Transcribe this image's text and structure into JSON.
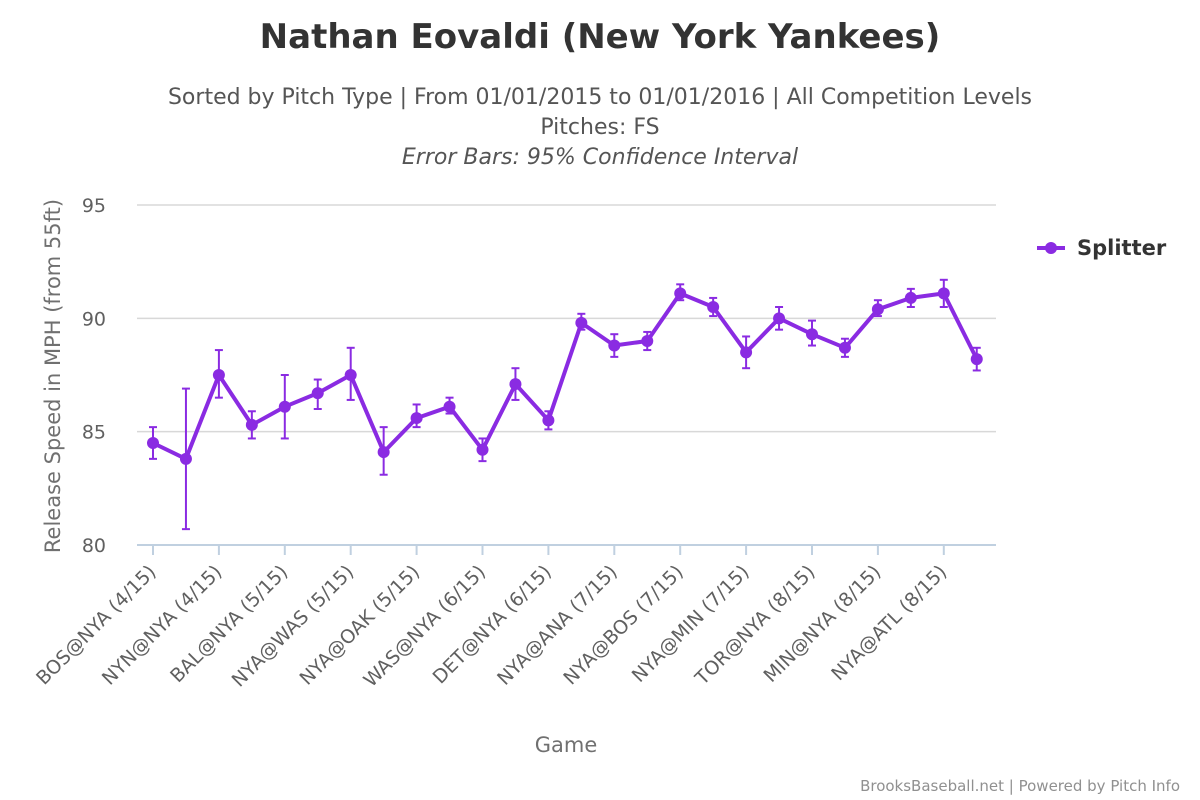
{
  "chart_data": {
    "type": "line",
    "title": "Nathan Eovaldi (New York Yankees)",
    "subtitle_lines": [
      "Sorted by Pitch Type | From 01/01/2015 to 01/01/2016 | All Competition Levels",
      "Pitches: FS",
      "Error Bars: 95% Confidence Interval"
    ],
    "xlabel": "Game",
    "ylabel": "Release Speed in MPH (from 55ft)",
    "ylim": [
      80,
      95
    ],
    "yticks": [
      80,
      85,
      90,
      95
    ],
    "grid": true,
    "legend_position": "right",
    "categories": [
      "BOS@NYA (4/15)",
      "",
      "NYN@NYA (4/15)",
      "",
      "BAL@NYA (5/15)",
      "",
      "NYA@WAS (5/15)",
      "",
      "NYA@OAK (5/15)",
      "",
      "WAS@NYA (6/15)",
      "",
      "DET@NYA (6/15)",
      "",
      "NYA@ANA (7/15)",
      "",
      "NYA@BOS (7/15)",
      "",
      "NYA@MIN (7/15)",
      "",
      "TOR@NYA (8/15)",
      "",
      "MIN@NYA (8/15)",
      "",
      "NYA@ATL (8/15)",
      ""
    ],
    "series": [
      {
        "name": "Splitter",
        "color": "#8A2BE2",
        "values": [
          84.5,
          83.8,
          87.5,
          85.3,
          86.1,
          86.7,
          87.5,
          84.1,
          85.6,
          86.1,
          84.2,
          87.1,
          85.5,
          89.8,
          88.8,
          89.0,
          91.1,
          90.5,
          88.5,
          90.0,
          89.3,
          88.7,
          90.4,
          90.9,
          91.1,
          88.2
        ],
        "error_low": [
          83.8,
          80.7,
          86.5,
          84.7,
          84.7,
          86.0,
          86.4,
          83.1,
          85.2,
          85.8,
          83.7,
          86.4,
          85.1,
          89.5,
          88.3,
          88.6,
          90.8,
          90.1,
          87.8,
          89.5,
          88.8,
          88.3,
          90.1,
          90.5,
          90.5,
          87.7
        ],
        "error_high": [
          85.2,
          86.9,
          88.6,
          85.9,
          87.5,
          87.3,
          88.7,
          85.2,
          86.2,
          86.5,
          84.7,
          87.8,
          85.9,
          90.2,
          89.3,
          89.4,
          91.5,
          90.9,
          89.2,
          90.5,
          89.9,
          89.1,
          90.8,
          91.3,
          91.7,
          88.7
        ]
      }
    ]
  },
  "credits": "BrooksBaseball.net | Powered by Pitch Info"
}
